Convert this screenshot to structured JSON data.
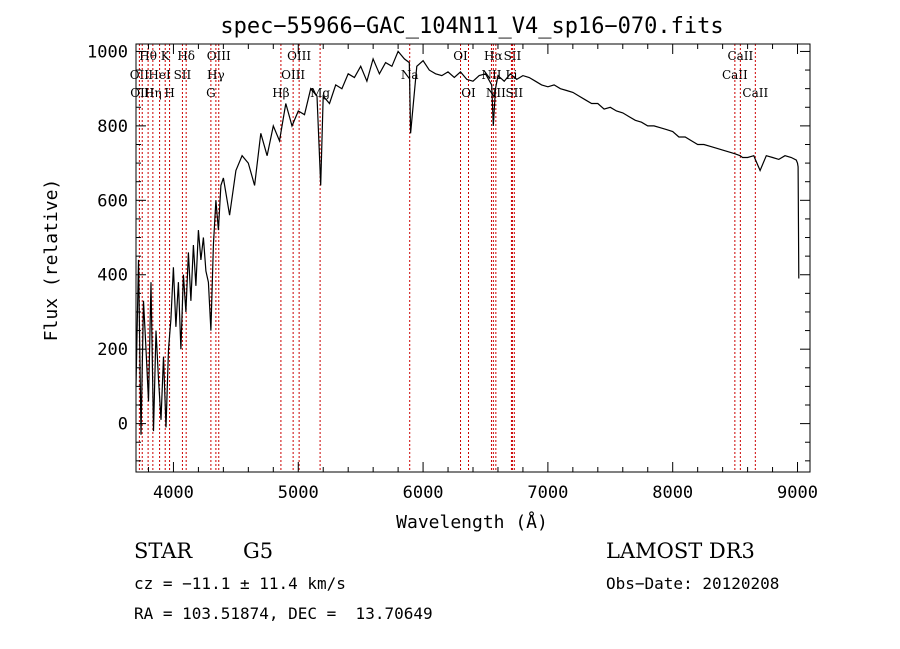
{
  "chart_data": {
    "type": "line",
    "title": "spec−55966−GAC_104N11_V4_sp16−070.fits",
    "xlabel": "Wavelength (Å)",
    "ylabel": "Flux (relative)",
    "xlim": [
      3700,
      9100
    ],
    "ylim": [
      -130,
      1020
    ],
    "xticks": [
      4000,
      5000,
      6000,
      7000,
      8000,
      9000
    ],
    "yticks": [
      0,
      200,
      400,
      600,
      800,
      1000
    ],
    "series": [
      {
        "name": "flux",
        "x": [
          3700,
          3720,
          3740,
          3760,
          3780,
          3800,
          3820,
          3840,
          3860,
          3880,
          3900,
          3920,
          3940,
          3960,
          3980,
          4000,
          4020,
          4040,
          4060,
          4080,
          4100,
          4120,
          4140,
          4160,
          4180,
          4200,
          4220,
          4240,
          4260,
          4280,
          4300,
          4320,
          4340,
          4360,
          4380,
          4400,
          4450,
          4500,
          4550,
          4600,
          4650,
          4700,
          4750,
          4800,
          4850,
          4900,
          4950,
          5000,
          5050,
          5100,
          5150,
          5180,
          5200,
          5250,
          5300,
          5350,
          5400,
          5450,
          5500,
          5550,
          5600,
          5650,
          5700,
          5750,
          5800,
          5850,
          5890,
          5900,
          5950,
          6000,
          6050,
          6100,
          6150,
          6200,
          6250,
          6300,
          6350,
          6400,
          6450,
          6500,
          6550,
          6563,
          6580,
          6600,
          6650,
          6700,
          6750,
          6800,
          6850,
          6900,
          6950,
          7000,
          7050,
          7100,
          7150,
          7200,
          7250,
          7300,
          7350,
          7400,
          7450,
          7500,
          7550,
          7600,
          7650,
          7700,
          7750,
          7800,
          7850,
          7900,
          7950,
          8000,
          8050,
          8100,
          8150,
          8200,
          8250,
          8300,
          8350,
          8400,
          8450,
          8500,
          8540,
          8560,
          8600,
          8650,
          8662,
          8700,
          8750,
          8800,
          8850,
          8900,
          8950,
          8990,
          9000,
          9005,
          9010
        ],
        "values": [
          100,
          440,
          -30,
          330,
          200,
          60,
          380,
          -20,
          250,
          120,
          10,
          180,
          -10,
          200,
          280,
          420,
          260,
          380,
          200,
          400,
          300,
          460,
          330,
          480,
          370,
          520,
          440,
          500,
          410,
          380,
          250,
          480,
          600,
          520,
          640,
          660,
          560,
          680,
          720,
          700,
          640,
          780,
          720,
          800,
          760,
          860,
          800,
          840,
          830,
          900,
          880,
          640,
          880,
          860,
          910,
          900,
          940,
          930,
          960,
          920,
          980,
          940,
          970,
          960,
          1000,
          980,
          970,
          780,
          960,
          975,
          950,
          940,
          935,
          945,
          930,
          945,
          925,
          920,
          935,
          940,
          910,
          800,
          900,
          935,
          920,
          940,
          925,
          935,
          930,
          920,
          910,
          905,
          910,
          900,
          895,
          890,
          880,
          870,
          860,
          860,
          845,
          850,
          840,
          835,
          825,
          815,
          810,
          800,
          800,
          795,
          790,
          785,
          770,
          770,
          760,
          750,
          750,
          745,
          740,
          735,
          730,
          725,
          720,
          715,
          715,
          720,
          710,
          680,
          720,
          715,
          710,
          720,
          715,
          708,
          700,
          690,
          390
        ]
      }
    ],
    "lines": [
      {
        "x": 3727,
        "label": "OII",
        "row": 1
      },
      {
        "x": 3750,
        "label": "OIII",
        "row": 2
      },
      {
        "x": 3797,
        "label": "Hθ",
        "row": 0
      },
      {
        "x": 3835,
        "label": "Hη",
        "row": 2
      },
      {
        "x": 3889,
        "label": "HeI",
        "row": 1
      },
      {
        "x": 3934,
        "label": "K",
        "row": 0
      },
      {
        "x": 3969,
        "label": "H",
        "row": 2
      },
      {
        "x": 4072,
        "label": "SII",
        "row": 1
      },
      {
        "x": 4102,
        "label": "Hδ",
        "row": 0
      },
      {
        "x": 4300,
        "label": "G",
        "row": 2
      },
      {
        "x": 4340,
        "label": "Hγ",
        "row": 1
      },
      {
        "x": 4363,
        "label": "OIII",
        "row": 0
      },
      {
        "x": 4861,
        "label": "Hβ",
        "row": 2
      },
      {
        "x": 4959,
        "label": "OIII",
        "row": 1
      },
      {
        "x": 5007,
        "label": "OIII",
        "row": 0
      },
      {
        "x": 5175,
        "label": "Mg",
        "row": 2
      },
      {
        "x": 5893,
        "label": "Na",
        "row": 1
      },
      {
        "x": 6300,
        "label": "OI",
        "row": 0
      },
      {
        "x": 6364,
        "label": "OI",
        "row": 2
      },
      {
        "x": 6548,
        "label": "NII",
        "row": 1
      },
      {
        "x": 6563,
        "label": "Hα",
        "row": 0
      },
      {
        "x": 6583,
        "label": "NII",
        "row": 2
      },
      {
        "x": 6708,
        "label": "Li",
        "row": 1
      },
      {
        "x": 6716,
        "label": "SII",
        "row": 0
      },
      {
        "x": 6731,
        "label": "SII",
        "row": 2
      },
      {
        "x": 8498,
        "label": "CaII",
        "row": 1
      },
      {
        "x": 8542,
        "label": "CaII",
        "row": 0
      },
      {
        "x": 8662,
        "label": "CaII",
        "row": 2
      }
    ]
  },
  "info": {
    "class": "STAR",
    "subclass": "G5",
    "survey": "LAMOST DR3",
    "cz": "cz = −11.1 ± 11.4 km/s",
    "obs_date": "Obs−Date: 20120208",
    "radec": "RA = 103.51874, DEC =  13.70649"
  },
  "colors": {
    "axis": "#000000",
    "line": "#000000",
    "marker": "#cc0000"
  }
}
